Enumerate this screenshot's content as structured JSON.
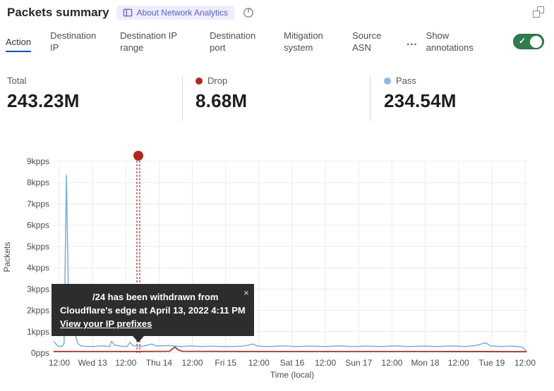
{
  "header": {
    "title": "Packets summary",
    "badge_label": "About Network Analytics"
  },
  "tabs": {
    "items": [
      {
        "label": "Action",
        "active": true
      },
      {
        "label": "Destination IP",
        "active": false
      },
      {
        "label": "Destination IP range",
        "active": false
      },
      {
        "label": "Destination port",
        "active": false
      },
      {
        "label": "Mitigation system",
        "active": false
      },
      {
        "label": "Source ASN",
        "active": false
      }
    ],
    "more_label": "...",
    "annotations_toggle": {
      "label": "Show annotations",
      "state": "on",
      "on_color": "#2e7d4f"
    }
  },
  "stats": [
    {
      "label": "Total",
      "value": "243.23M"
    },
    {
      "label": "Drop",
      "value": "8.68M",
      "dot_color": "#b2281e"
    },
    {
      "label": "Pass",
      "value": "234.54M",
      "dot_color": "#8ab9ea"
    }
  ],
  "tooltip": {
    "line1": "/24 has been withdrawn from",
    "line2": "Cloudflare's edge at April 13, 2022 4:11 PM",
    "link": "View your IP prefixes",
    "close": "×"
  },
  "chart_data": {
    "type": "line",
    "title": "Packets summary",
    "xlabel": "Time (local)",
    "ylabel": "Packets",
    "x_ticks": [
      "12:00",
      "Wed 13",
      "12:00",
      "Thu 14",
      "12:00",
      "Fri 15",
      "12:00",
      "Sat 16",
      "12:00",
      "Sun 17",
      "12:00",
      "Mon 18",
      "12:00",
      "Tue 19",
      "12:00"
    ],
    "y_ticks": [
      "0pps",
      "1kpps",
      "2kpps",
      "3kpps",
      "4kpps",
      "5kpps",
      "6kpps",
      "7kpps",
      "8kpps",
      "9kpps"
    ],
    "ylim": [
      0,
      9
    ],
    "unit": "kpps",
    "grid": true,
    "x_domain": "fraction of visible 7-day window (Apr 12 - Apr 19, 2022)",
    "series": [
      {
        "name": "Pass",
        "color": "#7aace0",
        "points": [
          [
            0,
            0.55
          ],
          [
            0.009,
            0.32
          ],
          [
            0.018,
            0.3
          ],
          [
            0.022,
            0.45
          ],
          [
            0.027,
            8.35
          ],
          [
            0.031,
            3.0
          ],
          [
            0.034,
            1.1
          ],
          [
            0.04,
            0.95
          ],
          [
            0.045,
            0.9
          ],
          [
            0.051,
            0.45
          ],
          [
            0.058,
            0.32
          ],
          [
            0.08,
            0.3
          ],
          [
            0.103,
            0.33
          ],
          [
            0.118,
            0.3
          ],
          [
            0.122,
            0.55
          ],
          [
            0.128,
            0.38
          ],
          [
            0.14,
            0.32
          ],
          [
            0.155,
            0.3
          ],
          [
            0.161,
            0.5
          ],
          [
            0.167,
            0.35
          ],
          [
            0.185,
            0.3
          ],
          [
            0.207,
            0.42
          ],
          [
            0.217,
            0.32
          ],
          [
            0.244,
            0.35
          ],
          [
            0.266,
            0.3
          ],
          [
            0.289,
            0.33
          ],
          [
            0.311,
            0.3
          ],
          [
            0.333,
            0.32
          ],
          [
            0.356,
            0.3
          ],
          [
            0.378,
            0.3
          ],
          [
            0.4,
            0.32
          ],
          [
            0.42,
            0.42
          ],
          [
            0.43,
            0.32
          ],
          [
            0.452,
            0.3
          ],
          [
            0.482,
            0.33
          ],
          [
            0.512,
            0.3
          ],
          [
            0.542,
            0.32
          ],
          [
            0.571,
            0.3
          ],
          [
            0.601,
            0.33
          ],
          [
            0.631,
            0.3
          ],
          [
            0.661,
            0.32
          ],
          [
            0.69,
            0.3
          ],
          [
            0.72,
            0.33
          ],
          [
            0.75,
            0.3
          ],
          [
            0.78,
            0.32
          ],
          [
            0.81,
            0.3
          ],
          [
            0.839,
            0.33
          ],
          [
            0.869,
            0.3
          ],
          [
            0.891,
            0.35
          ],
          [
            0.911,
            0.48
          ],
          [
            0.921,
            0.33
          ],
          [
            0.943,
            0.3
          ],
          [
            0.966,
            0.32
          ],
          [
            0.988,
            0.28
          ],
          [
            0.997,
            0.08
          ]
        ]
      },
      {
        "name": "Drop",
        "color": "#a8342e",
        "points": [
          [
            0,
            0.07
          ],
          [
            0.18,
            0.07
          ],
          [
            0.244,
            0.08
          ],
          [
            0.251,
            0.2
          ],
          [
            0.256,
            0.28
          ],
          [
            0.262,
            0.15
          ],
          [
            0.271,
            0.08
          ],
          [
            0.4,
            0.07
          ],
          [
            0.6,
            0.07
          ],
          [
            0.8,
            0.07
          ],
          [
            0.997,
            0.06
          ]
        ]
      }
    ],
    "annotation": {
      "t": 0.1786,
      "color": "#b2281e",
      "label": "/24 has been withdrawn from Cloudflare's edge at April 13, 2022 4:11 PM"
    }
  }
}
